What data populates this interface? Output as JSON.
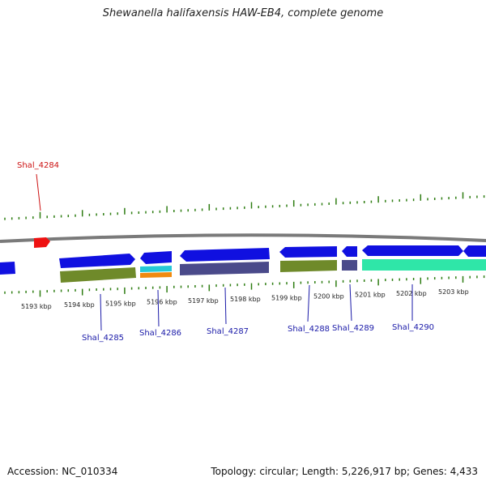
{
  "title": "Shewanella halifaxensis HAW-EB4, complete genome",
  "footer": {
    "accession": "Accession: NC_010334",
    "summary": "Topology: circular; Length: 5,226,917 bp; Genes: 4,433"
  },
  "colors": {
    "backbone": "#808080",
    "tick": "#2e7d12",
    "forward_gene": "#1010e0",
    "reverse_gene": "#1010e0",
    "label_blue": "#1a1aa8",
    "label_red": "#cc1111",
    "cog_olive": "#6f8a2a",
    "cog_cyan": "#26c8d6",
    "cog_orange": "#f08a10",
    "cog_slate": "#4a4a8a",
    "cog_teal": "#2fe6a8",
    "feature_red": "#ee1111"
  },
  "scale_labels": [
    "5193 kbp",
    "5194 kbp",
    "5195 kbp",
    "5196 kbp",
    "5197 kbp",
    "5198 kbp",
    "5199 kbp",
    "5200 kbp",
    "5201 kbp",
    "5202 kbp",
    "5203 kbp"
  ],
  "gene_labels": [
    {
      "id": "shal4284",
      "text": "Shal_4284",
      "color": "red"
    },
    {
      "id": "shal4285",
      "text": "Shal_4285",
      "color": "blue"
    },
    {
      "id": "shal4286",
      "text": "Shal_4286",
      "color": "blue"
    },
    {
      "id": "shal4287",
      "text": "Shal_4287",
      "color": "blue"
    },
    {
      "id": "shal4288",
      "text": "Shal_4288",
      "color": "blue"
    },
    {
      "id": "shal4289",
      "text": "Shal_4289",
      "color": "blue"
    },
    {
      "id": "shal4290",
      "text": "Shal_4290",
      "color": "blue"
    }
  ]
}
